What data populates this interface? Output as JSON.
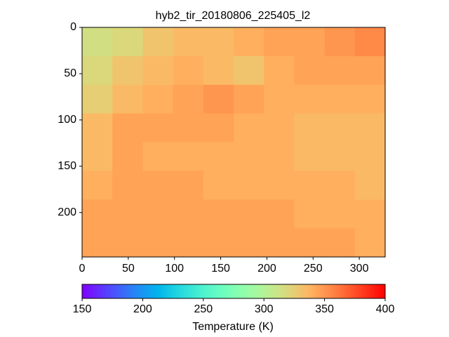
{
  "chart_data": {
    "type": "heatmap",
    "title": "hyb2_tir_20180806_225405_l2",
    "colormap": "rainbow",
    "xlim": [
      0,
      328
    ],
    "xticks": [
      0,
      50,
      100,
      150,
      200,
      250,
      300
    ],
    "ylim": [
      248,
      0
    ],
    "yticks": [
      0,
      50,
      100,
      150,
      200
    ],
    "values": [
      [
        315,
        320,
        330,
        335,
        335,
        340,
        345,
        345,
        350,
        355
      ],
      [
        320,
        330,
        335,
        340,
        335,
        330,
        340,
        345,
        345,
        345
      ],
      [
        325,
        335,
        340,
        345,
        350,
        345,
        340,
        340,
        340,
        340
      ],
      [
        335,
        345,
        345,
        345,
        345,
        340,
        340,
        335,
        335,
        335
      ],
      [
        335,
        345,
        340,
        340,
        340,
        340,
        340,
        335,
        335,
        335
      ],
      [
        340,
        345,
        345,
        345,
        340,
        340,
        340,
        340,
        340,
        335
      ],
      [
        345,
        345,
        345,
        345,
        345,
        345,
        345,
        340,
        340,
        340
      ],
      [
        345,
        345,
        345,
        345,
        345,
        345,
        345,
        345,
        345,
        340
      ]
    ],
    "colorbar": {
      "label": "Temperature (K)",
      "lim": [
        150,
        400
      ],
      "ticks": [
        150,
        200,
        250,
        300,
        350,
        400
      ]
    }
  }
}
